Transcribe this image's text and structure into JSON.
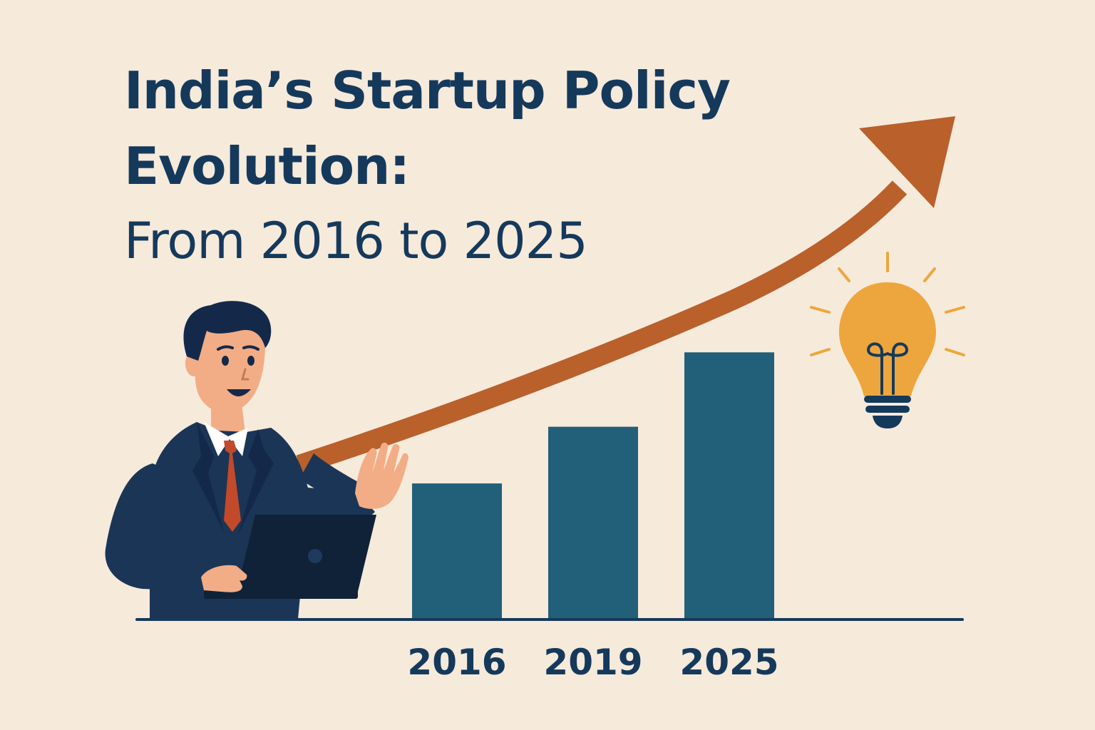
{
  "title_line1": "India’s Startup Policy",
  "title_line2": "Evolution:",
  "subtitle": "From 2016 to 2025",
  "colors": {
    "background": "#f6eadb",
    "title": "#15395b",
    "bar": "#225f78",
    "arrow": "#b9602b",
    "axis": "#15395b",
    "bulb": "#eda63d",
    "suit": "#1b3556",
    "tie": "#c24a2a",
    "skin": "#f2ad86"
  },
  "icons": [
    "businessman-illustration",
    "laptop-icon",
    "lightbulb-icon",
    "trend-arrow"
  ],
  "chart_data": {
    "type": "bar",
    "categories": [
      "2016",
      "2019",
      "2025"
    ],
    "values": [
      38,
      54,
      75
    ],
    "title": "",
    "xlabel": "",
    "ylabel": "",
    "ylim": [
      0,
      100
    ],
    "grid": false,
    "trend": "upward"
  }
}
